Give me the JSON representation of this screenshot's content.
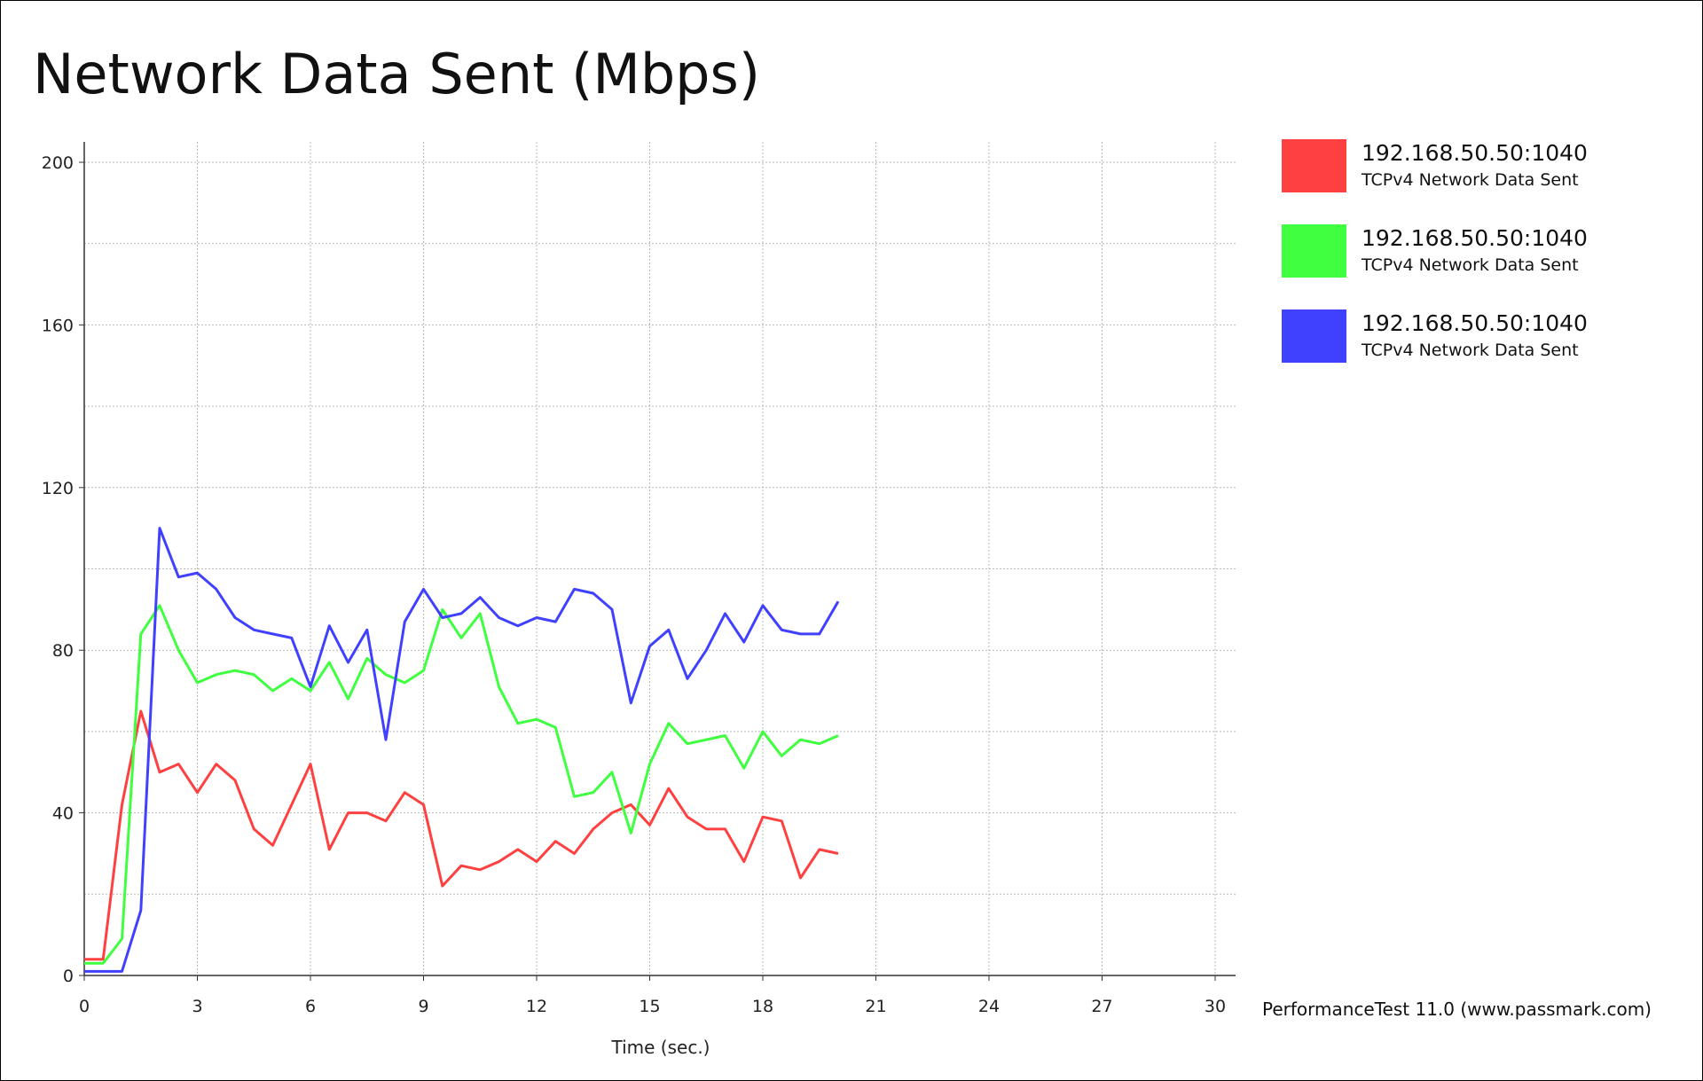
{
  "chart_data": {
    "type": "line",
    "title": "Network Data Sent (Mbps)",
    "xlabel": "Time (sec.)",
    "ylabel": "",
    "xlim": [
      0,
      30
    ],
    "ylim": [
      0,
      200
    ],
    "x_ticks": [
      0,
      3,
      6,
      9,
      12,
      15,
      18,
      21,
      24,
      27,
      30
    ],
    "y_ticks": [
      0,
      40,
      80,
      120,
      160,
      200
    ],
    "grid": true,
    "legend_position": "right",
    "credit": "PerformanceTest 11.0 (www.passmark.com)",
    "x": [
      0,
      0.5,
      1,
      1.5,
      2,
      2.5,
      3,
      3.5,
      4,
      4.5,
      5,
      5.5,
      6,
      6.5,
      7,
      7.5,
      8,
      8.5,
      9,
      9.5,
      10,
      10.5,
      11,
      11.5,
      12,
      12.5,
      13,
      13.5,
      14,
      14.5,
      15,
      15.5,
      16,
      16.5,
      17,
      17.5,
      18,
      18.5,
      19,
      19.5,
      20
    ],
    "series": [
      {
        "name": "192.168.50.50:1040",
        "subtitle": "TCPv4 Network Data Sent",
        "color": "#ff4040",
        "values": [
          4,
          4,
          42,
          65,
          50,
          52,
          45,
          52,
          48,
          36,
          32,
          42,
          52,
          31,
          40,
          40,
          38,
          45,
          42,
          22,
          27,
          26,
          28,
          31,
          28,
          33,
          30,
          36,
          40,
          42,
          37,
          46,
          39,
          36,
          36,
          28,
          39,
          38,
          24,
          31,
          30
        ]
      },
      {
        "name": "192.168.50.50:1040",
        "subtitle": "TCPv4 Network Data Sent",
        "color": "#40ff40",
        "values": [
          3,
          3,
          9,
          84,
          91,
          80,
          72,
          74,
          75,
          74,
          70,
          73,
          70,
          77,
          68,
          78,
          74,
          72,
          75,
          90,
          83,
          89,
          71,
          62,
          63,
          61,
          44,
          45,
          50,
          35,
          52,
          62,
          57,
          58,
          59,
          51,
          60,
          54,
          58,
          57,
          59
        ]
      },
      {
        "name": "192.168.50.50:1040",
        "subtitle": "TCPv4 Network Data Sent",
        "color": "#4040ff",
        "values": [
          1,
          1,
          1,
          16,
          110,
          98,
          99,
          95,
          88,
          85,
          84,
          83,
          71,
          86,
          77,
          85,
          58,
          87,
          95,
          88,
          89,
          93,
          88,
          86,
          88,
          87,
          95,
          94,
          90,
          67,
          81,
          85,
          73,
          80,
          89,
          82,
          91,
          85,
          84,
          84,
          92
        ]
      }
    ]
  }
}
